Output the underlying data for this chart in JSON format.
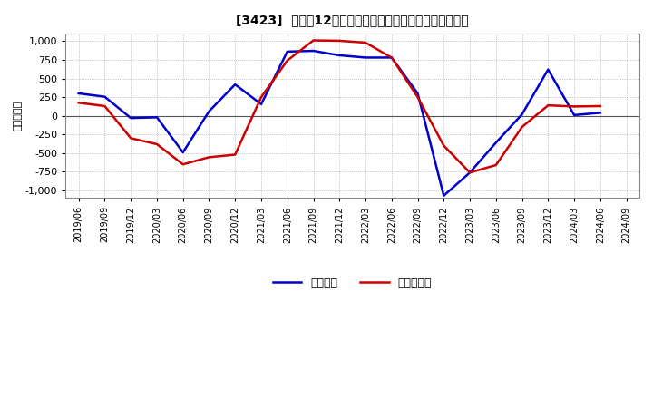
{
  "title": "[3423]  利益だ12か月移動合計の対前年同期増減額の推移",
  "ylabel": "（百万円）",
  "legend_labels": [
    "経常利益",
    "当期純利益"
  ],
  "line_colors": [
    "#0000cc",
    "#cc0000"
  ],
  "background_color": "#ffffff",
  "plot_bg_color": "#ffffff",
  "grid_color": "#aaaaaa",
  "ylim": [
    -1100,
    1100
  ],
  "yticks": [
    -1000,
    -750,
    -500,
    -250,
    0,
    250,
    500,
    750,
    1000
  ],
  "dates": [
    "2019/06",
    "2019/09",
    "2019/12",
    "2020/03",
    "2020/06",
    "2020/09",
    "2020/12",
    "2021/03",
    "2021/06",
    "2021/09",
    "2021/12",
    "2022/03",
    "2022/06",
    "2022/09",
    "2022/12",
    "2023/03",
    "2023/06",
    "2023/09",
    "2023/12",
    "2024/03",
    "2024/06",
    "2024/09"
  ],
  "keijo_rieki": [
    300,
    255,
    -30,
    -20,
    -490,
    60,
    420,
    155,
    860,
    870,
    810,
    780,
    780,
    300,
    -1070,
    -760,
    -360,
    20,
    620,
    10,
    40,
    null
  ],
  "touki_junn_rieki": [
    175,
    130,
    -300,
    -380,
    -650,
    -555,
    -520,
    250,
    740,
    1010,
    1005,
    980,
    780,
    250,
    -400,
    -760,
    -660,
    -150,
    140,
    125,
    130,
    null
  ]
}
